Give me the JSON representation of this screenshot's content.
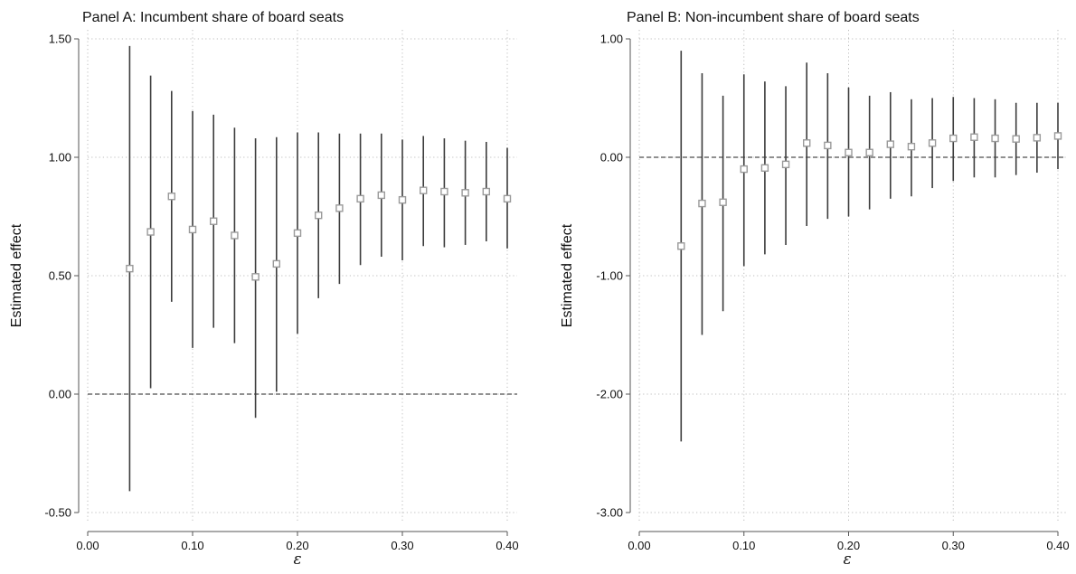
{
  "colors": {
    "error_bar": "#3c3c3c",
    "marker": "#9a9a9a",
    "grid": "#bdbdbd",
    "axis": "#555555",
    "zero_line": "#222222",
    "background": "#ffffff"
  },
  "chart_data": [
    {
      "type": "scatter",
      "subtype": "point-with-confidence-interval",
      "title": "Panel A: Incumbent share of board seats",
      "xlabel": "ε",
      "ylabel": "Estimated effect",
      "xlim": [
        0.0,
        0.4
      ],
      "ylim": [
        -0.5,
        1.5
      ],
      "xticks": [
        "0.00",
        "0.10",
        "0.20",
        "0.30",
        "0.40"
      ],
      "xtick_values": [
        0.0,
        0.1,
        0.2,
        0.3,
        0.4
      ],
      "yticks": [
        "1.50",
        "1.00",
        "0.50",
        "0.00",
        "-0.50"
      ],
      "ytick_values": [
        1.5,
        1.0,
        0.5,
        0.0,
        -0.5
      ],
      "grid": true,
      "reference_line": 0.0,
      "x": [
        0.04,
        0.06,
        0.08,
        0.1,
        0.12,
        0.14,
        0.16,
        0.18,
        0.2,
        0.22,
        0.24,
        0.26,
        0.28,
        0.3,
        0.32,
        0.34,
        0.36,
        0.38,
        0.4
      ],
      "y": [
        0.53,
        0.685,
        0.835,
        0.695,
        0.73,
        0.67,
        0.495,
        0.55,
        0.68,
        0.755,
        0.785,
        0.825,
        0.84,
        0.82,
        0.86,
        0.855,
        0.85,
        0.855,
        0.825
      ],
      "lower": [
        -0.41,
        0.025,
        0.39,
        0.195,
        0.28,
        0.215,
        -0.1,
        0.01,
        0.255,
        0.405,
        0.465,
        0.545,
        0.58,
        0.565,
        0.625,
        0.62,
        0.63,
        0.645,
        0.615
      ],
      "upper": [
        1.47,
        1.345,
        1.28,
        1.195,
        1.18,
        1.125,
        1.08,
        1.085,
        1.105,
        1.105,
        1.1,
        1.1,
        1.1,
        1.075,
        1.09,
        1.08,
        1.07,
        1.065,
        1.04
      ]
    },
    {
      "type": "scatter",
      "subtype": "point-with-confidence-interval",
      "title": "Panel B: Non-incumbent share of board seats",
      "xlabel": "ε",
      "ylabel": "Estimated effect",
      "xlim": [
        0.0,
        0.4
      ],
      "ylim": [
        -3.0,
        1.0
      ],
      "xticks": [
        "0.00",
        "0.10",
        "0.20",
        "0.30",
        "0.40"
      ],
      "xtick_values": [
        0.0,
        0.1,
        0.2,
        0.3,
        0.4
      ],
      "yticks": [
        "1.00",
        "0.00",
        "-1.00",
        "-2.00",
        "-3.00"
      ],
      "ytick_values": [
        1.0,
        0.0,
        -1.0,
        -2.0,
        -3.0
      ],
      "grid": true,
      "reference_line": 0.0,
      "x": [
        0.04,
        0.06,
        0.08,
        0.1,
        0.12,
        0.14,
        0.16,
        0.18,
        0.2,
        0.22,
        0.24,
        0.26,
        0.28,
        0.3,
        0.32,
        0.34,
        0.36,
        0.38,
        0.4
      ],
      "y": [
        -0.75,
        -0.39,
        -0.38,
        -0.1,
        -0.09,
        -0.06,
        0.12,
        0.1,
        0.04,
        0.04,
        0.11,
        0.09,
        0.12,
        0.16,
        0.17,
        0.16,
        0.155,
        0.165,
        0.18
      ],
      "lower": [
        -2.4,
        -1.5,
        -1.3,
        -0.92,
        -0.82,
        -0.74,
        -0.58,
        -0.52,
        -0.5,
        -0.44,
        -0.35,
        -0.33,
        -0.26,
        -0.2,
        -0.17,
        -0.17,
        -0.15,
        -0.13,
        -0.1
      ],
      "upper": [
        0.9,
        0.71,
        0.52,
        0.7,
        0.64,
        0.6,
        0.8,
        0.71,
        0.59,
        0.52,
        0.55,
        0.49,
        0.5,
        0.51,
        0.5,
        0.49,
        0.46,
        0.46,
        0.46
      ]
    }
  ]
}
